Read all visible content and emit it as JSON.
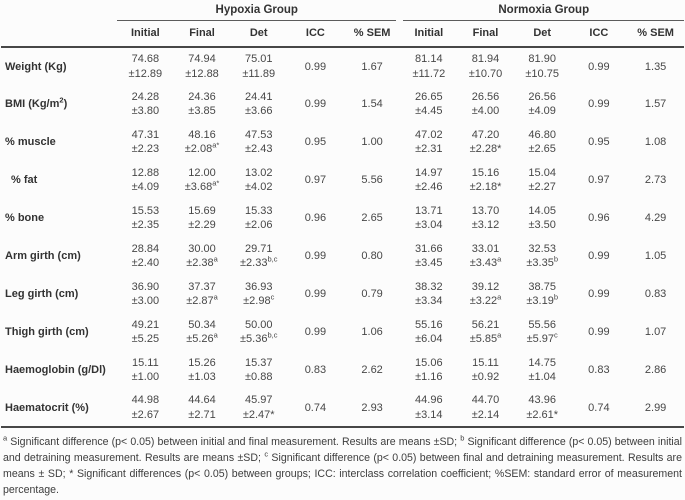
{
  "table": {
    "groups": [
      "Hypoxia Group",
      "Normoxia Group"
    ],
    "sub_headers": [
      "Initial",
      "Final",
      "Det",
      "ICC",
      "% SEM",
      "Initial",
      "Final",
      "Det",
      "ICC",
      "% SEM"
    ],
    "rows": [
      {
        "label_pre": "Weight (Kg)",
        "label_sup": "",
        "label_post": "",
        "indent": false,
        "cells": [
          {
            "m": "74.68",
            "s": "±12.89",
            "sup": ""
          },
          {
            "m": "74.94",
            "s": "±12.88",
            "sup": ""
          },
          {
            "m": "75.01",
            "s": "±11.89",
            "sup": ""
          },
          {
            "v": "0.99"
          },
          {
            "v": "1.67"
          },
          {
            "m": "81.14",
            "s": "±11.72",
            "sup": ""
          },
          {
            "m": "81.94",
            "s": "±10.70",
            "sup": ""
          },
          {
            "m": "81.90",
            "s": "±10.75",
            "sup": ""
          },
          {
            "v": "0.99"
          },
          {
            "v": "1.35"
          }
        ]
      },
      {
        "label_pre": "BMI (Kg/m",
        "label_sup": "2",
        "label_post": ")",
        "indent": false,
        "cells": [
          {
            "m": "24.28",
            "s": "±3.80",
            "sup": ""
          },
          {
            "m": "24.36",
            "s": "±3.85",
            "sup": ""
          },
          {
            "m": "24.41",
            "s": "±3.66",
            "sup": ""
          },
          {
            "v": "0.99"
          },
          {
            "v": "1.54"
          },
          {
            "m": "26.65",
            "s": "±4.45",
            "sup": ""
          },
          {
            "m": "26.56",
            "s": "±4.00",
            "sup": ""
          },
          {
            "m": "26.56",
            "s": "±4.09",
            "sup": ""
          },
          {
            "v": "0.99"
          },
          {
            "v": "1.57"
          }
        ]
      },
      {
        "label_pre": "% muscle",
        "label_sup": "",
        "label_post": "",
        "indent": false,
        "cells": [
          {
            "m": "47.31",
            "s": "±2.23",
            "sup": ""
          },
          {
            "m": "48.16",
            "s": "±2.08",
            "sup": "a*"
          },
          {
            "m": "47.53",
            "s": "±2.43",
            "sup": ""
          },
          {
            "v": "0.95"
          },
          {
            "v": "1.00"
          },
          {
            "m": "47.02",
            "s": "±2.31",
            "sup": ""
          },
          {
            "m": "47.20",
            "s": "±2.28*",
            "sup": ""
          },
          {
            "m": "46.80",
            "s": "±2.65",
            "sup": ""
          },
          {
            "v": "0.95"
          },
          {
            "v": "1.08"
          }
        ]
      },
      {
        "label_pre": "% fat",
        "label_sup": "",
        "label_post": "",
        "indent": true,
        "cells": [
          {
            "m": "12.88",
            "s": "±4.09",
            "sup": ""
          },
          {
            "m": "12.00",
            "s": "±3.68",
            "sup": "a*"
          },
          {
            "m": "13.02",
            "s": "±4.02",
            "sup": ""
          },
          {
            "v": "0.97"
          },
          {
            "v": "5.56"
          },
          {
            "m": "14.97",
            "s": "±2.46",
            "sup": ""
          },
          {
            "m": "15.16",
            "s": "±2.18*",
            "sup": ""
          },
          {
            "m": "15.04",
            "s": "±2.27",
            "sup": ""
          },
          {
            "v": "0.97"
          },
          {
            "v": "2.73"
          }
        ]
      },
      {
        "label_pre": "% bone",
        "label_sup": "",
        "label_post": "",
        "indent": false,
        "cells": [
          {
            "m": "15.53",
            "s": "±2.35",
            "sup": ""
          },
          {
            "m": "15.69",
            "s": "±2.29",
            "sup": ""
          },
          {
            "m": "15.33",
            "s": "±2.06",
            "sup": ""
          },
          {
            "v": "0.96"
          },
          {
            "v": "2.65"
          },
          {
            "m": "13.71",
            "s": "±3.04",
            "sup": ""
          },
          {
            "m": "13.70",
            "s": "±3.12",
            "sup": ""
          },
          {
            "m": "14.05",
            "s": "±3.50",
            "sup": ""
          },
          {
            "v": "0.96"
          },
          {
            "v": "4.29"
          }
        ]
      },
      {
        "label_pre": "Arm girth (cm)",
        "label_sup": "",
        "label_post": "",
        "indent": false,
        "cells": [
          {
            "m": "28.84",
            "s": "±2.40",
            "sup": ""
          },
          {
            "m": "30.00",
            "s": "±2.38",
            "sup": "a"
          },
          {
            "m": "29.71",
            "s": "±2.33",
            "sup": "b,c"
          },
          {
            "v": "0.99"
          },
          {
            "v": "0.80"
          },
          {
            "m": "31.66",
            "s": "±3.45",
            "sup": ""
          },
          {
            "m": "33.01",
            "s": "±3.43",
            "sup": "a"
          },
          {
            "m": "32.53",
            "s": "±3.35",
            "sup": "b"
          },
          {
            "v": "0.99"
          },
          {
            "v": "1.05"
          }
        ]
      },
      {
        "label_pre": "Leg girth (cm)",
        "label_sup": "",
        "label_post": "",
        "indent": false,
        "cells": [
          {
            "m": "36.90",
            "s": "±3.00",
            "sup": ""
          },
          {
            "m": "37.37",
            "s": "±2.87",
            "sup": "a"
          },
          {
            "m": "36.93",
            "s": "±2.98",
            "sup": "c"
          },
          {
            "v": "0.99"
          },
          {
            "v": "0.79"
          },
          {
            "m": "38.32",
            "s": "±3.34",
            "sup": ""
          },
          {
            "m": "39.12",
            "s": "±3.22",
            "sup": "a"
          },
          {
            "m": "38.75",
            "s": "±3.19",
            "sup": "b"
          },
          {
            "v": "0.99"
          },
          {
            "v": "0.83"
          }
        ]
      },
      {
        "label_pre": "Thigh girth (cm)",
        "label_sup": "",
        "label_post": "",
        "indent": false,
        "cells": [
          {
            "m": "49.21",
            "s": "±5.25",
            "sup": ""
          },
          {
            "m": "50.34",
            "s": "±5.26",
            "sup": "a"
          },
          {
            "m": "50.00",
            "s": "±5.36",
            "sup": "b,c"
          },
          {
            "v": "0.99"
          },
          {
            "v": "1.06"
          },
          {
            "m": "55.16",
            "s": "±6.04",
            "sup": ""
          },
          {
            "m": "56.21",
            "s": "±5.85",
            "sup": "a"
          },
          {
            "m": "55.56",
            "s": "±5.97",
            "sup": "c"
          },
          {
            "v": "0.99"
          },
          {
            "v": "1.07"
          }
        ]
      },
      {
        "label_pre": "Haemoglobin (g/Dl)",
        "label_sup": "",
        "label_post": "",
        "indent": false,
        "cells": [
          {
            "m": "15.11",
            "s": "±1.00",
            "sup": ""
          },
          {
            "m": "15.26",
            "s": "±1.03",
            "sup": ""
          },
          {
            "m": "15.37",
            "s": "±0.88",
            "sup": ""
          },
          {
            "v": "0.83"
          },
          {
            "v": "2.62"
          },
          {
            "m": "15.06",
            "s": "±1.16",
            "sup": ""
          },
          {
            "m": "15.11",
            "s": "±0.92",
            "sup": ""
          },
          {
            "m": "14.75",
            "s": "±1.04",
            "sup": ""
          },
          {
            "v": "0.83"
          },
          {
            "v": "2.86"
          }
        ]
      },
      {
        "label_pre": "Haematocrit (%)",
        "label_sup": "",
        "label_post": "",
        "indent": false,
        "cells": [
          {
            "m": "44.98",
            "s": "±2.67",
            "sup": ""
          },
          {
            "m": "44.64",
            "s": "±2.71",
            "sup": ""
          },
          {
            "m": "45.97",
            "s": "±2.47*",
            "sup": ""
          },
          {
            "v": "0.74"
          },
          {
            "v": "2.93"
          },
          {
            "m": "44.96",
            "s": "±3.14",
            "sup": ""
          },
          {
            "m": "44.70",
            "s": "±2.14",
            "sup": ""
          },
          {
            "m": "43.96",
            "s": "±2.61*",
            "sup": ""
          },
          {
            "v": "0.74"
          },
          {
            "v": "2.99"
          }
        ]
      }
    ]
  },
  "footnote": {
    "segments": [
      {
        "sup": "a",
        "text": "Significant difference (p< 0.05) between initial and final measurement. Results are means ±SD; "
      },
      {
        "sup": "b",
        "text": "Significant difference (p< 0.05) between initial and detraining measurement. Results are means ±SD; "
      },
      {
        "sup": "c",
        "text": "Significant difference (p< 0.05) between final and detraining measurement. Results are means ± SD; "
      },
      {
        "sup": "",
        "text": "* Significant differences (p< 0.05) between groups; ICC: interclass correlation coefficient; %SEM: standard error of measurement percentage."
      }
    ]
  },
  "colors": {
    "text": "#474747",
    "label": "#333333",
    "thin_rule": "#5c5c5c",
    "heavy_rule": "#474747",
    "background": "#fcfcfc"
  }
}
